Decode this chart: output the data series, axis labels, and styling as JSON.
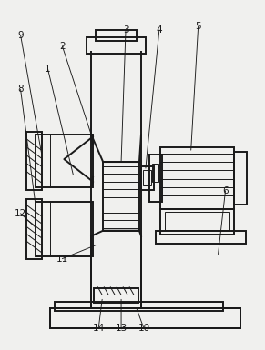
{
  "bg_color": "#f0f0ee",
  "line_color": "#1a1a1a",
  "line_width": 1.4,
  "thin_line": 0.7,
  "figsize": [
    2.91,
    3.85
  ],
  "dpi": 100,
  "label_fs": 7.5
}
